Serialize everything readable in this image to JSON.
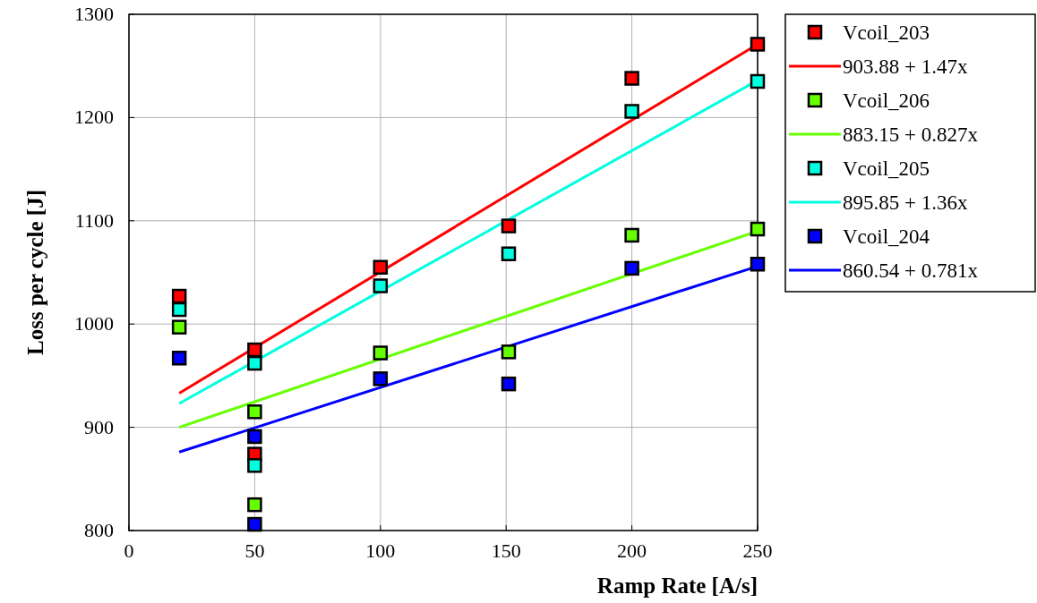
{
  "chart_data": {
    "type": "scatter",
    "xlabel": "Ramp Rate [A/s]",
    "ylabel": "Loss per cycle [J]",
    "xlim": [
      0,
      250
    ],
    "xticks": [
      0,
      50,
      100,
      150,
      200,
      250
    ],
    "ylim": [
      800,
      1300
    ],
    "yticks": [
      800,
      900,
      1000,
      1100,
      1200,
      1300
    ],
    "grid": true,
    "legend": "right",
    "marker": "square",
    "series": [
      {
        "name": "Vcoil_203",
        "color": "#ff0000",
        "x": [
          20,
          50,
          50,
          100,
          151,
          200,
          250
        ],
        "values": [
          1027,
          975,
          874,
          1055,
          1095,
          1238,
          1271
        ]
      },
      {
        "name": "903.88 + 1.47x",
        "type": "line",
        "marker": "none",
        "color": "#ff0000",
        "x": [
          20,
          250
        ],
        "values": [
          933,
          1271
        ]
      },
      {
        "name": "Vcoil_206",
        "color": "#66ff00",
        "x": [
          20,
          50,
          50,
          100,
          151,
          200,
          250
        ],
        "values": [
          997,
          915,
          825,
          972,
          973,
          1086,
          1092
        ]
      },
      {
        "name": "883.15 + 0.827x",
        "type": "line",
        "marker": "none",
        "color": "#66ff00",
        "x": [
          20,
          250
        ],
        "values": [
          900,
          1090
        ]
      },
      {
        "name": "Vcoil_205",
        "color": "#00ffe0",
        "x": [
          20,
          50,
          50,
          100,
          151,
          200,
          250
        ],
        "values": [
          1014,
          962,
          863,
          1037,
          1068,
          1206,
          1235
        ]
      },
      {
        "name": "895.85 + 1.36x",
        "type": "line",
        "marker": "none",
        "color": "#00ffe0",
        "x": [
          20,
          250
        ],
        "values": [
          923,
          1236
        ]
      },
      {
        "name": "Vcoil_204",
        "color": "#0000ff",
        "x": [
          20,
          50,
          50,
          100,
          151,
          200,
          250
        ],
        "values": [
          967,
          891,
          806,
          947,
          942,
          1054,
          1058
        ]
      },
      {
        "name": "860.54 + 0.781x",
        "type": "line",
        "marker": "none",
        "color": "#0000ff",
        "x": [
          20,
          250
        ],
        "values": [
          876,
          1056
        ]
      }
    ]
  }
}
